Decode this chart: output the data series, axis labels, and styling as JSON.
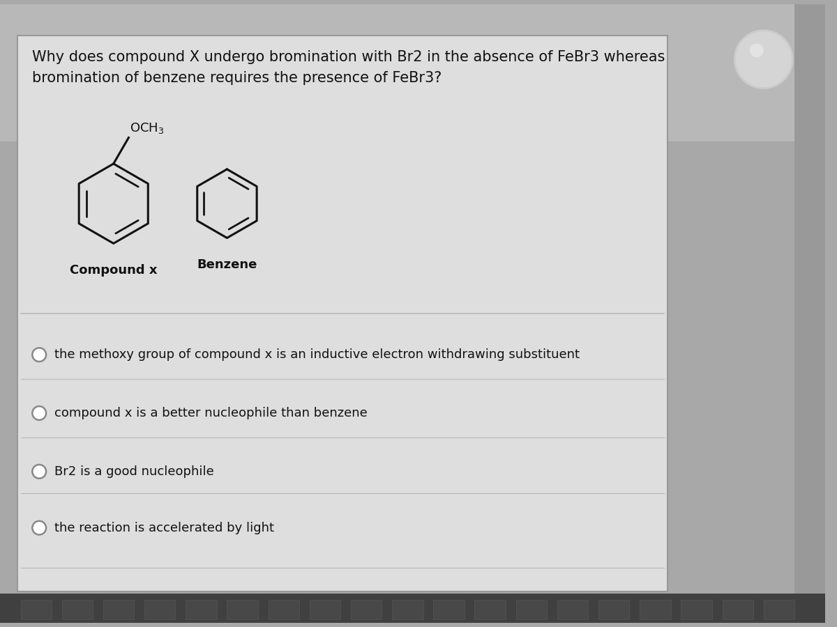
{
  "title_line1": "Why does compound X undergo bromination with Br2 in the absence of FeBr3 whereas",
  "title_line2": "bromination of benzene requires the presence of FeBr3?",
  "compound_x_label": "Compound x",
  "benzene_label": "Benzene",
  "options": [
    "the methoxy group of compound x is an inductive electron withdrawing substituent",
    "compound x is a better nucleophile than benzene",
    "Br2 is a good nucleophile",
    "the reaction is accelerated by light"
  ],
  "bg_color_top": "#b0b0b0",
  "bg_color": "#a8a8a8",
  "card_color": "#dedede",
  "card_border": "#999999",
  "text_color": "#111111",
  "title_fontsize": 15,
  "option_fontsize": 13,
  "label_fontsize": 13,
  "struct_color": "#111111",
  "divider_color": "#bbbbbb",
  "radio_edge": "#888888",
  "globe_color": "#d8d8d8"
}
